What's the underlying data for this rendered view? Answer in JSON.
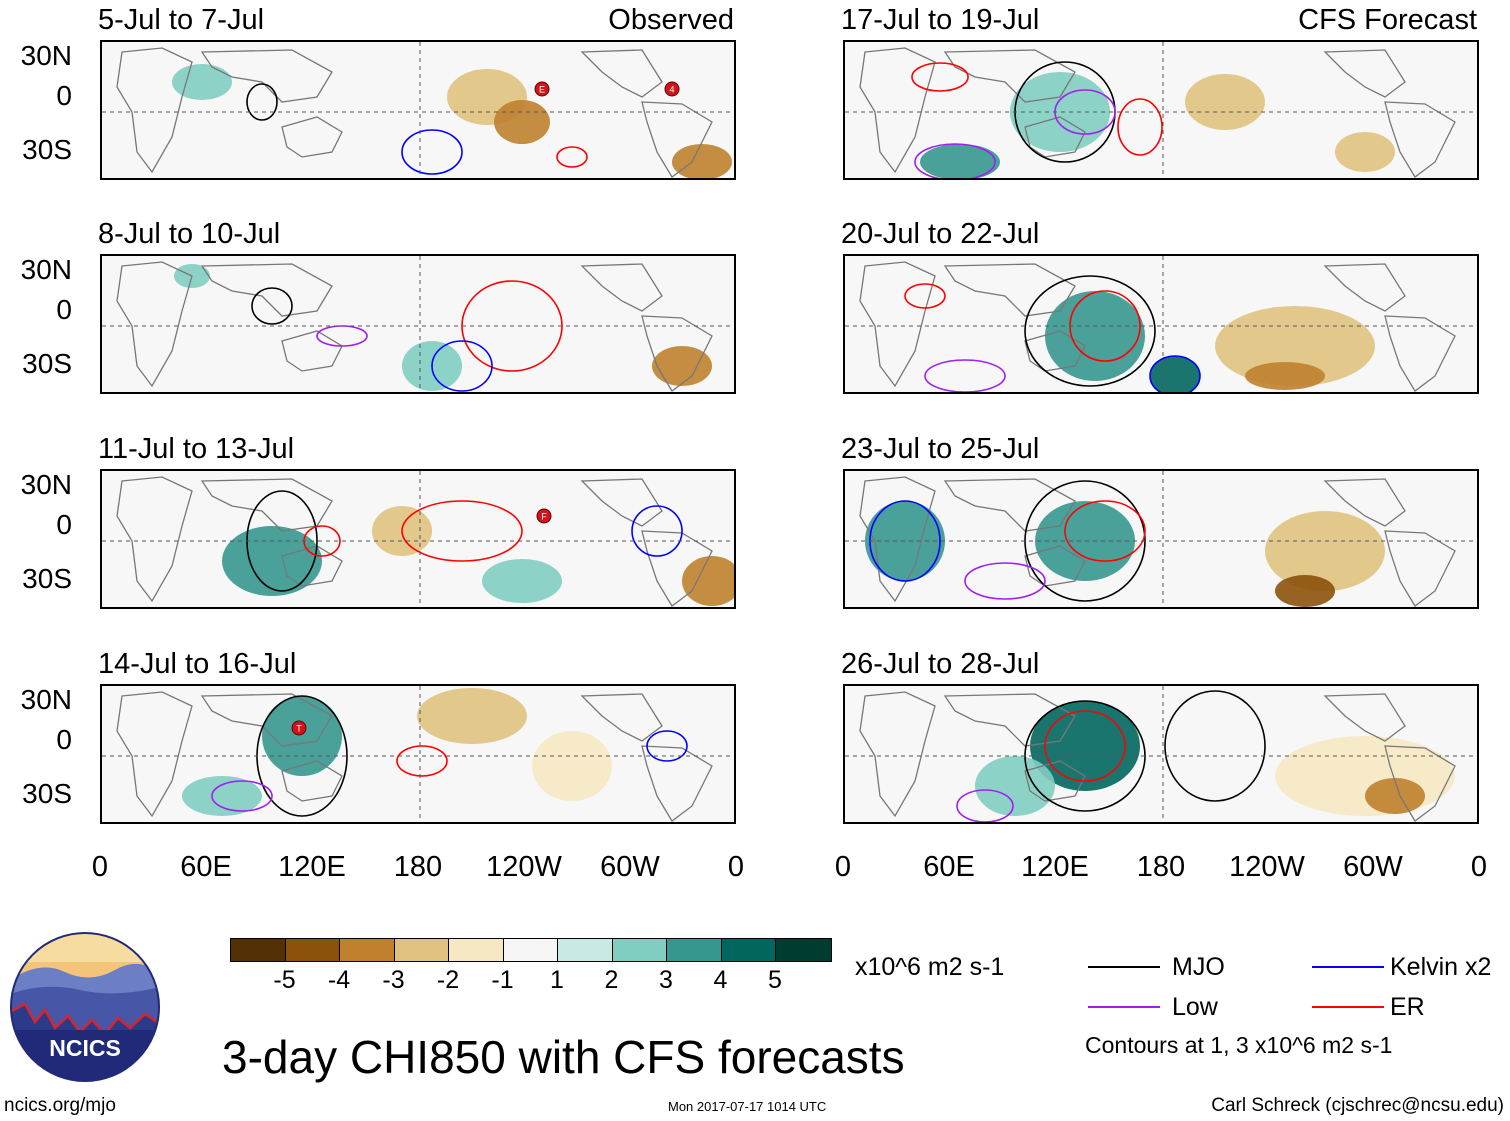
{
  "panels_left": [
    {
      "title": "5-Jul to 7-Jul",
      "label": "Observed"
    },
    {
      "title": "8-Jul to 10-Jul",
      "label": ""
    },
    {
      "title": "11-Jul to 13-Jul",
      "label": ""
    },
    {
      "title": "14-Jul to 16-Jul",
      "label": ""
    }
  ],
  "panels_right": [
    {
      "title": "17-Jul to 19-Jul",
      "label": "CFS Forecast"
    },
    {
      "title": "20-Jul to 22-Jul",
      "label": ""
    },
    {
      "title": "23-Jul to 25-Jul",
      "label": ""
    },
    {
      "title": "26-Jul to 28-Jul",
      "label": ""
    }
  ],
  "y_ticks": [
    "30N",
    "0",
    "30S"
  ],
  "x_ticks": [
    "0",
    "60E",
    "120E",
    "180",
    "120W",
    "60W",
    "0"
  ],
  "storm_markers": [
    "E",
    "4",
    "F",
    "T"
  ],
  "colorbar": {
    "colors": [
      "#543005",
      "#8c510a",
      "#bf812d",
      "#dfc27d",
      "#f6e8c3",
      "#f5f5f5",
      "#c7eae5",
      "#80cdc1",
      "#35978f",
      "#01665e",
      "#003c30"
    ],
    "labels": [
      "-5",
      "-4",
      "-3",
      "-2",
      "-1",
      "1",
      "2",
      "3",
      "4",
      "5"
    ],
    "units": "x10^6 m2 s-1"
  },
  "legend": {
    "items": [
      {
        "name": "MJO",
        "color": "#000000"
      },
      {
        "name": "Kelvin x2",
        "color": "#0000ff"
      },
      {
        "name": "Low",
        "color": "#a020f0"
      },
      {
        "name": "ER",
        "color": "#ff0000"
      }
    ],
    "note": "Contours at 1, 3 x10^6 m2 s-1"
  },
  "logo_text": "NCICS",
  "main_title": "3-day CHI850 with CFS forecasts",
  "footer": {
    "left": "ncics.org/mjo",
    "center": "Mon 2017-07-17 1014 UTC",
    "right": "Carl Schreck (cjschrec@ncsu.edu)"
  }
}
